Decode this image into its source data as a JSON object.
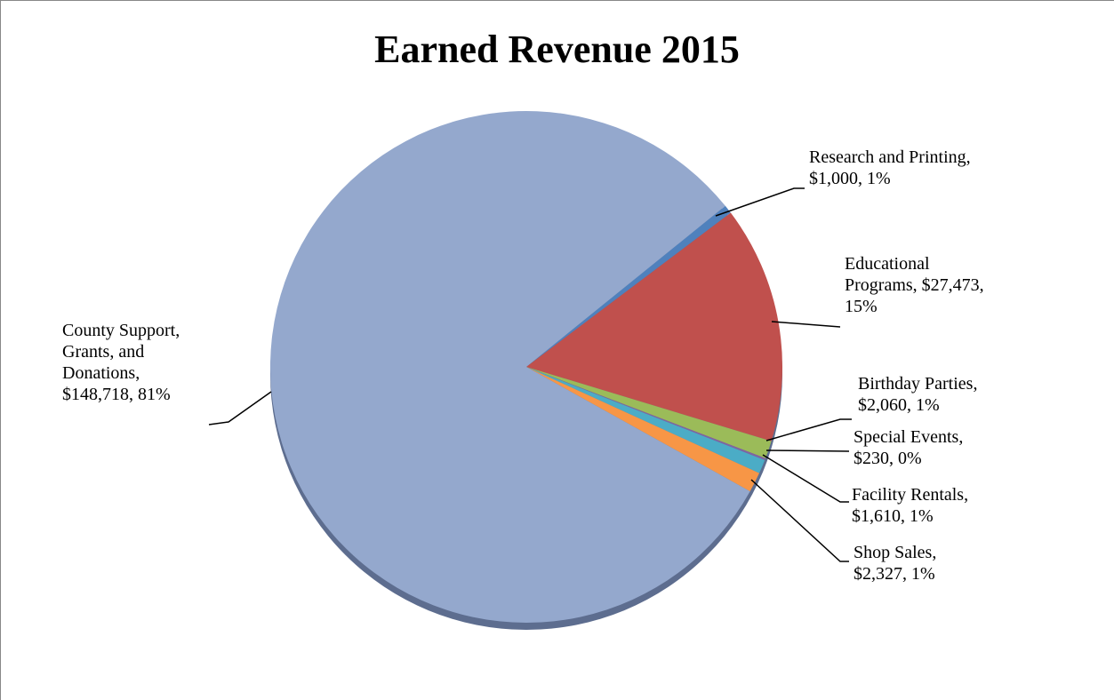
{
  "chart_data": {
    "type": "pie",
    "title": "Earned Revenue 2015",
    "categories": [
      "Research and Printing",
      "Educational Programs",
      "Birthday Parties",
      "Special Events",
      "Facility Rentals",
      "Shop Sales",
      "County Support, Grants, and Donations"
    ],
    "values": [
      1000,
      27473,
      2060,
      230,
      1610,
      2327,
      148718
    ],
    "value_labels": [
      "$1,000",
      "$27,473",
      "$2,060",
      "$230",
      "$1,610",
      "$2,327",
      "$148,718"
    ],
    "percent_labels": [
      "1%",
      "15%",
      "1%",
      "0%",
      "1%",
      "1%",
      "81%"
    ],
    "label_separator": ", ",
    "colors": [
      "#4f81bd",
      "#c0504d",
      "#9bbb59",
      "#8064a2",
      "#4bacc6",
      "#f79646",
      "#94a8cd"
    ]
  }
}
